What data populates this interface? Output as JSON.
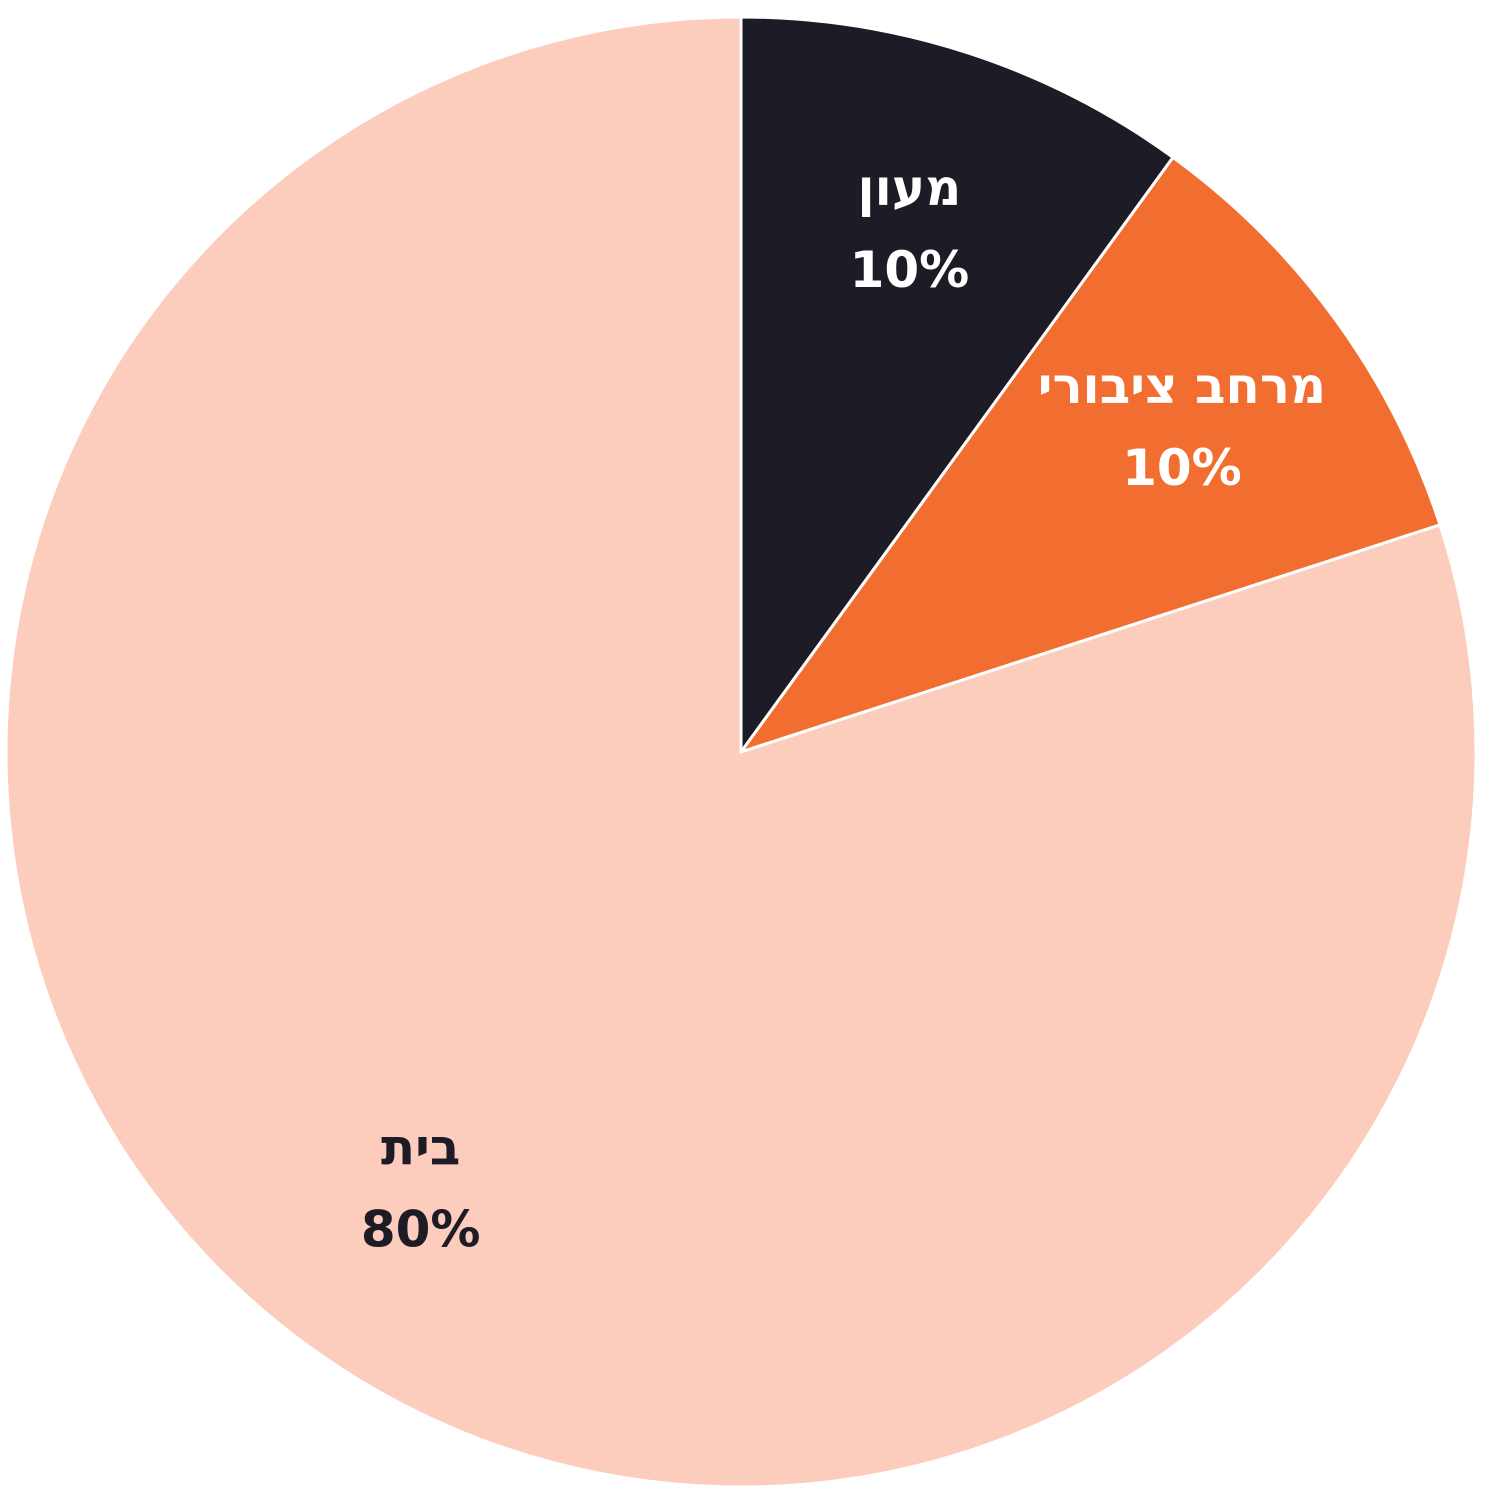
{
  "chart_data": {
    "type": "pie",
    "categories": [
      "מעון",
      "מרחב ציבורי",
      "בית"
    ],
    "values": [
      10,
      10,
      80
    ],
    "value_labels": [
      "10%",
      "10%",
      "80%"
    ],
    "colors": [
      "#1c1b26",
      "#f26d30",
      "#fccdbd"
    ]
  }
}
